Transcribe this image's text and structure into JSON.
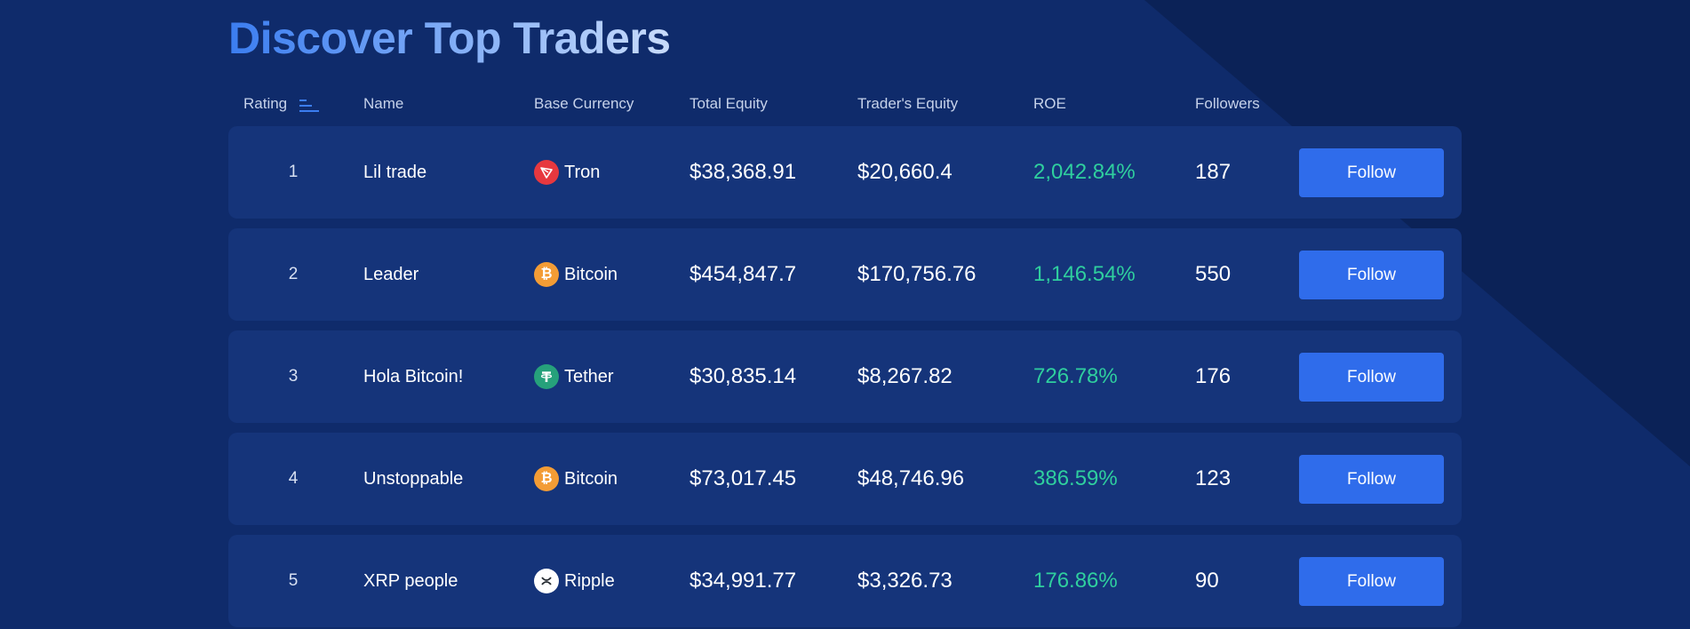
{
  "page": {
    "title": "Discover Top Traders",
    "colors": {
      "background": "#0f2b6b",
      "row": "#15347a",
      "accent": "#2f6ceb",
      "positive": "#2fcf9e"
    }
  },
  "table": {
    "headers": {
      "rating": "Rating",
      "name": "Name",
      "base_currency": "Base Currency",
      "total_equity": "Total Equity",
      "traders_equity": "Trader's Equity",
      "roe": "ROE",
      "followers": "Followers"
    },
    "sort_icon": "sort-descending-icon",
    "rows": [
      {
        "rank": "1",
        "name": "Lil trade",
        "currency": "Tron",
        "coin_icon": "tron-icon",
        "coin_color": "#e7383f",
        "total_equity": "$38,368.91",
        "traders_equity": "$20,660.4",
        "roe": "2,042.84%",
        "followers": "187",
        "action": "Follow"
      },
      {
        "rank": "2",
        "name": "Leader",
        "currency": "Bitcoin",
        "coin_icon": "bitcoin-icon",
        "coin_color": "#f39c35",
        "total_equity": "$454,847.7",
        "traders_equity": "$170,756.76",
        "roe": "1,146.54%",
        "followers": "550",
        "action": "Follow"
      },
      {
        "rank": "3",
        "name": "Hola Bitcoin!",
        "currency": "Tether",
        "coin_icon": "tether-icon",
        "coin_color": "#26a17b",
        "total_equity": "$30,835.14",
        "traders_equity": "$8,267.82",
        "roe": "726.78%",
        "followers": "176",
        "action": "Follow"
      },
      {
        "rank": "4",
        "name": "Unstoppable",
        "currency": "Bitcoin",
        "coin_icon": "bitcoin-icon",
        "coin_color": "#f39c35",
        "total_equity": "$73,017.45",
        "traders_equity": "$48,746.96",
        "roe": "386.59%",
        "followers": "123",
        "action": "Follow"
      },
      {
        "rank": "5",
        "name": "XRP people",
        "currency": "Ripple",
        "coin_icon": "ripple-icon",
        "coin_color": "#ffffff",
        "total_equity": "$34,991.77",
        "traders_equity": "$3,326.73",
        "roe": "176.86%",
        "followers": "90",
        "action": "Follow"
      }
    ]
  }
}
